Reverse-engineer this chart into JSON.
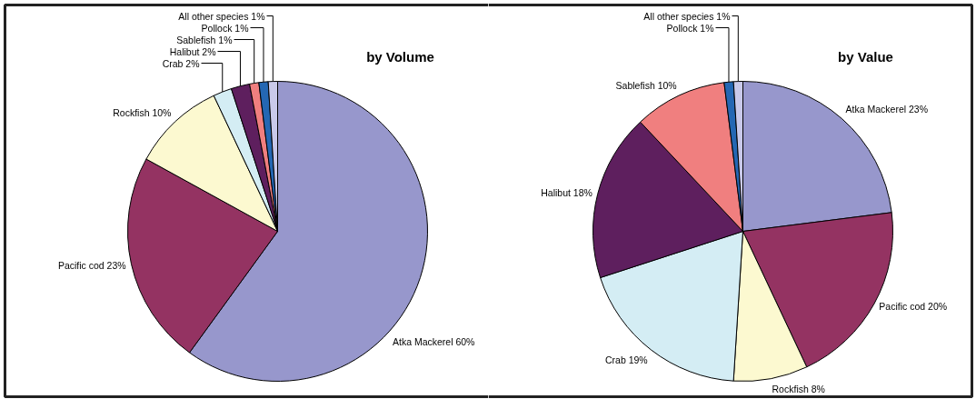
{
  "chart_data": [
    {
      "type": "pie",
      "title": "by Volume",
      "categories": [
        "Atka Mackerel",
        "Pacific cod",
        "Rockfish",
        "Crab",
        "Halibut",
        "Sablefish",
        "Pollock",
        "All other species"
      ],
      "values": [
        60,
        23,
        10,
        2,
        2,
        1,
        1,
        1
      ],
      "value_labels": [
        "60%",
        "23%",
        "10%",
        "2%",
        "2%",
        "1%",
        "1%",
        "1%"
      ],
      "colors": [
        "#9797cc",
        "#943362",
        "#fcf9d0",
        "#d4edf4",
        "#5e1f5e",
        "#f07f7f",
        "#2467b3",
        "#c9c9ea"
      ]
    },
    {
      "type": "pie",
      "title": "by Value",
      "categories": [
        "Atka Mackerel",
        "Pacific cod",
        "Rockfish",
        "Crab",
        "Halibut",
        "Sablefish",
        "Pollock",
        "All other species"
      ],
      "values": [
        23,
        20,
        8,
        19,
        18,
        10,
        1,
        1
      ],
      "value_labels": [
        "23%",
        "20%",
        "8%",
        "19%",
        "18%",
        "10%",
        "1%",
        "1%"
      ],
      "colors": [
        "#9797cc",
        "#943362",
        "#fcf9d0",
        "#d4edf4",
        "#5e1f5e",
        "#f07f7f",
        "#2467b3",
        "#c9c9ea"
      ]
    }
  ]
}
